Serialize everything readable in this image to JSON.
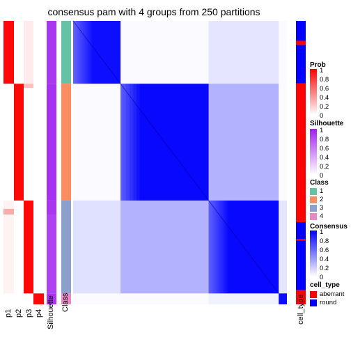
{
  "chart_data": {
    "type": "heatmap",
    "title": "consensus pam with 4 groups from 250 partitions",
    "annotation_columns": [
      "p1",
      "p2",
      "p3",
      "p4",
      "Silhouette",
      "Class"
    ],
    "right_annotation": "cell_type",
    "class_groups": [
      {
        "class": "1",
        "size": 92
      },
      {
        "class": "2",
        "size": 171
      },
      {
        "class": "3",
        "size": 136
      },
      {
        "class": "4",
        "size": 16
      }
    ],
    "legends": {
      "prob": {
        "title": "Prob",
        "ticks": [
          "1",
          "0.8",
          "0.6",
          "0.4",
          "0.2",
          "0"
        ]
      },
      "silhouette": {
        "title": "Silhouette",
        "ticks": [
          "1",
          "0.8",
          "0.6",
          "0.4",
          "0.2",
          "0"
        ]
      },
      "class": {
        "title": "Class",
        "items": [
          "1",
          "2",
          "3",
          "4"
        ]
      },
      "consensus": {
        "title": "Consensus",
        "ticks": [
          "1",
          "0.8",
          "0.6",
          "0.4",
          "0.2",
          "0"
        ]
      },
      "cell_type": {
        "title": "cell_type",
        "items": [
          "aberrant",
          "round"
        ]
      }
    },
    "colors": {
      "prob": "#ff0000",
      "silhouette": "#a020f0",
      "consensus": "#0000ff",
      "class": [
        "#66c2a5",
        "#fc8d62",
        "#8da0cb",
        "#e78ac3"
      ],
      "cell_type": [
        "#ff0000",
        "#0000ff"
      ]
    }
  }
}
